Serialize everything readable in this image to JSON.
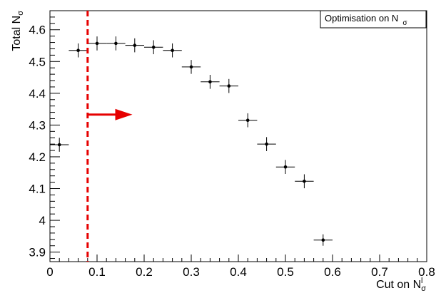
{
  "chart_data": {
    "type": "scatter",
    "title": "",
    "xlabel": "Cut on N",
    "xlabel_subscript": "σ",
    "xlabel_superscript": "l",
    "ylabel": "Total N",
    "ylabel_subscript": "σ",
    "xlim": [
      0,
      0.8
    ],
    "ylim": [
      3.87,
      4.66
    ],
    "x_ticks": [
      "0",
      "0.1",
      "0.2",
      "0.3",
      "0.4",
      "0.5",
      "0.6",
      "0.7",
      "0.8"
    ],
    "y_ticks": [
      "3.9",
      "4",
      "4.1",
      "4.2",
      "4.3",
      "4.4",
      "4.5",
      "4.6"
    ],
    "grid": false,
    "legend": {
      "text": "Optimisation on N",
      "subscript": "σ",
      "placement": "top-right"
    },
    "series": [
      {
        "x": [
          0.02,
          0.06,
          0.1,
          0.14,
          0.18,
          0.22,
          0.26,
          0.3,
          0.34,
          0.38,
          0.42,
          0.46,
          0.5,
          0.54,
          0.58
        ],
        "y": [
          4.238,
          4.535,
          4.557,
          4.557,
          4.551,
          4.545,
          4.535,
          4.483,
          4.436,
          4.423,
          4.315,
          4.24,
          4.168,
          4.123,
          3.938
        ],
        "x_err": 0.02,
        "y_err": [
          0.022,
          0.022,
          0.022,
          0.022,
          0.022,
          0.022,
          0.022,
          0.022,
          0.022,
          0.022,
          0.022,
          0.022,
          0.022,
          0.022,
          0.018
        ]
      }
    ],
    "cut_line": {
      "x": 0.08,
      "color": "#e60000",
      "style": "dashed"
    },
    "arrow": {
      "x_start": 0.08,
      "x_end": 0.175,
      "y": 4.333,
      "color": "#e60000",
      "direction": "right"
    }
  }
}
